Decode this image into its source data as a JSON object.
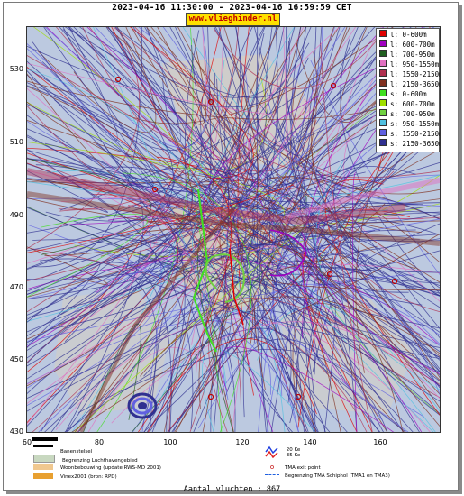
{
  "header": {
    "date_range": "2023-04-16 11:30:00 - 2023-04-16 16:59:59 CET",
    "url": "www.vlieghinder.nl"
  },
  "axes": {
    "y_ticks": [
      "530",
      "510",
      "490",
      "470",
      "450",
      "430"
    ],
    "x_ticks": [
      "60",
      "80",
      "100",
      "120",
      "140",
      "160"
    ]
  },
  "legend": [
    {
      "label": "l: 0-600m",
      "color": "#e00000"
    },
    {
      "label": "l: 600-700m",
      "color": "#a000c0"
    },
    {
      "label": "l: 700-950m",
      "color": "#206020"
    },
    {
      "label": "l: 950-1550m",
      "color": "#e070c0"
    },
    {
      "label": "l: 1550-2150m",
      "color": "#b03050"
    },
    {
      "label": "l: 2150-3650m",
      "color": "#803020"
    },
    {
      "label": "s: 0-600m",
      "color": "#40e020"
    },
    {
      "label": "s: 600-700m",
      "color": "#a0e000"
    },
    {
      "label": "s: 700-950m",
      "color": "#70d040"
    },
    {
      "label": "s: 950-1550m",
      "color": "#50c0e0"
    },
    {
      "label": "s: 1550-2150m",
      "color": "#6060e0"
    },
    {
      "label": "s: 2150-3650m",
      "color": "#303090"
    }
  ],
  "map_legend": {
    "runway": "Banenstelsel",
    "airport_boundary": "Begrenzing Luchthavengebied",
    "housing": "Woonbebouwing (update RWS-MD 2001)",
    "vinex": "Vinex2001 (bron: RPD)",
    "noise_a": "20 Ke",
    "noise_b": "35 Ke",
    "tma_exit": "TMA exit point",
    "tma_boundary": "Begrenzing TMA Schiphol  (TMA1 en TMA3)"
  },
  "footer": {
    "count_label": "Aantal vluchten : 867"
  },
  "colors": {
    "map_background": "#bcc9e0",
    "land_tint": "#d8cfc0",
    "url_background": "#ffe000",
    "url_text": "#c00000"
  }
}
